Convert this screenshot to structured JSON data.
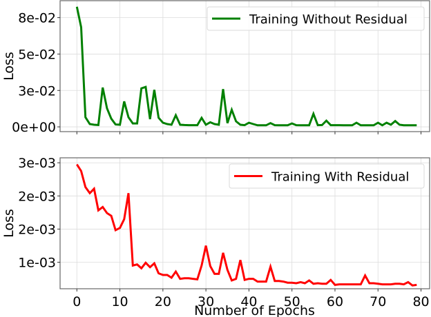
{
  "chart_data": [
    {
      "type": "line",
      "title": "",
      "xlabel": "",
      "ylabel": "Loss",
      "x_ticks": [
        0,
        10,
        20,
        30,
        40,
        50,
        60,
        70,
        80
      ],
      "x_tick_labels_visible": false,
      "y_ticks": [
        0,
        0.0275,
        0.055,
        0.0825
      ],
      "y_tick_labels": [
        "0e+00",
        "3e-02",
        "5e-02",
        "8e-02"
      ],
      "xlim": [
        -3.9,
        82.0
      ],
      "ylim": [
        -0.0036,
        0.0953
      ],
      "grid": true,
      "legend_position": "upper right",
      "series": [
        {
          "name": "Training Without Residual",
          "color": "#008000",
          "x": [
            0,
            1,
            2,
            3,
            4,
            5,
            6,
            7,
            8,
            9,
            10,
            11,
            12,
            13,
            14,
            15,
            16,
            17,
            18,
            19,
            20,
            21,
            22,
            23,
            24,
            25,
            26,
            27,
            28,
            29,
            30,
            31,
            32,
            33,
            34,
            35,
            36,
            37,
            38,
            39,
            40,
            41,
            42,
            43,
            44,
            45,
            46,
            47,
            48,
            49,
            50,
            51,
            52,
            53,
            54,
            55,
            56,
            57,
            58,
            59,
            60,
            61,
            62,
            63,
            64,
            65,
            66,
            67,
            68,
            69,
            70,
            71,
            72,
            73,
            74,
            75,
            76,
            77,
            78,
            79
          ],
          "values": [
            0.0907,
            0.0752,
            0.0073,
            0.0021,
            0.0016,
            0.0014,
            0.0297,
            0.014,
            0.0062,
            0.0018,
            0.0016,
            0.0192,
            0.0073,
            0.0026,
            0.0026,
            0.0291,
            0.0302,
            0.0058,
            0.028,
            0.0069,
            0.0031,
            0.0021,
            0.0016,
            0.0088,
            0.0016,
            0.0014,
            0.0013,
            0.0013,
            0.0013,
            0.0068,
            0.0016,
            0.0035,
            0.0021,
            0.0016,
            0.0285,
            0.0028,
            0.0129,
            0.0042,
            0.0016,
            0.0013,
            0.0031,
            0.0021,
            0.0012,
            0.0012,
            0.0012,
            0.0028,
            0.0013,
            0.0012,
            0.0012,
            0.0012,
            0.0026,
            0.0013,
            0.0012,
            0.0012,
            0.0012,
            0.0099,
            0.0013,
            0.0014,
            0.0047,
            0.0013,
            0.0013,
            0.0013,
            0.0012,
            0.0012,
            0.0012,
            0.0031,
            0.0012,
            0.0012,
            0.0012,
            0.0012,
            0.0031,
            0.0012,
            0.0031,
            0.0016,
            0.0044,
            0.0016,
            0.0012,
            0.0012,
            0.0012,
            0.0012
          ]
        }
      ]
    },
    {
      "type": "line",
      "title": "",
      "xlabel": "Number of Epochs",
      "ylabel": "Loss",
      "x_ticks": [
        0,
        10,
        20,
        30,
        40,
        50,
        60,
        70,
        80
      ],
      "x_tick_labels": [
        "0",
        "10",
        "20",
        "30",
        "40",
        "50",
        "60",
        "70",
        "80"
      ],
      "y_ticks": [
        0.0012,
        0.0018,
        0.0024,
        0.003
      ],
      "y_tick_labels": [
        "1e-03",
        "2e-03",
        "2e-03",
        "3e-03"
      ],
      "xlim": [
        -3.9,
        82.0
      ],
      "ylim": [
        0.00072,
        0.00309
      ],
      "grid": true,
      "legend_position": "upper right",
      "series": [
        {
          "name": "Training With Residual",
          "color": "#ff0000",
          "x": [
            0,
            1,
            2,
            3,
            4,
            5,
            6,
            7,
            8,
            9,
            10,
            11,
            12,
            13,
            14,
            15,
            16,
            17,
            18,
            19,
            20,
            21,
            22,
            23,
            24,
            25,
            26,
            27,
            28,
            29,
            30,
            31,
            32,
            33,
            34,
            35,
            36,
            37,
            38,
            39,
            40,
            41,
            42,
            43,
            44,
            45,
            46,
            47,
            48,
            49,
            50,
            51,
            52,
            53,
            54,
            55,
            56,
            57,
            58,
            59,
            60,
            61,
            62,
            63,
            64,
            65,
            66,
            67,
            68,
            69,
            70,
            71,
            72,
            73,
            74,
            75,
            76,
            77,
            78,
            79
          ],
          "values": [
            0.00297,
            0.00285,
            0.00256,
            0.00245,
            0.00253,
            0.00214,
            0.0022,
            0.00209,
            0.00204,
            0.00178,
            0.00182,
            0.00198,
            0.00245,
            0.00114,
            0.00116,
            0.00109,
            0.00119,
            0.00111,
            0.00118,
            0.001,
            0.00097,
            0.00097,
            0.00092,
            0.00103,
            0.0009,
            0.00091,
            0.00091,
            0.0009,
            0.00089,
            0.00114,
            0.0015,
            0.00113,
            0.00099,
            0.00099,
            0.00137,
            0.00106,
            0.00087,
            0.0009,
            0.00124,
            0.00088,
            0.0009,
            0.0009,
            0.00085,
            0.00085,
            0.00085,
            0.00112,
            0.00086,
            0.00086,
            0.00085,
            0.00083,
            0.00083,
            0.00082,
            0.00084,
            0.00082,
            0.00087,
            0.00081,
            0.00082,
            0.00081,
            0.00081,
            0.00088,
            0.00079,
            0.0008,
            0.0008,
            0.0008,
            0.0008,
            0.0008,
            0.0008,
            0.00096,
            0.00082,
            0.00082,
            0.00081,
            0.0008,
            0.0008,
            0.0008,
            0.00081,
            0.00081,
            0.0008,
            0.00084,
            0.00078,
            0.00079
          ]
        }
      ]
    }
  ]
}
